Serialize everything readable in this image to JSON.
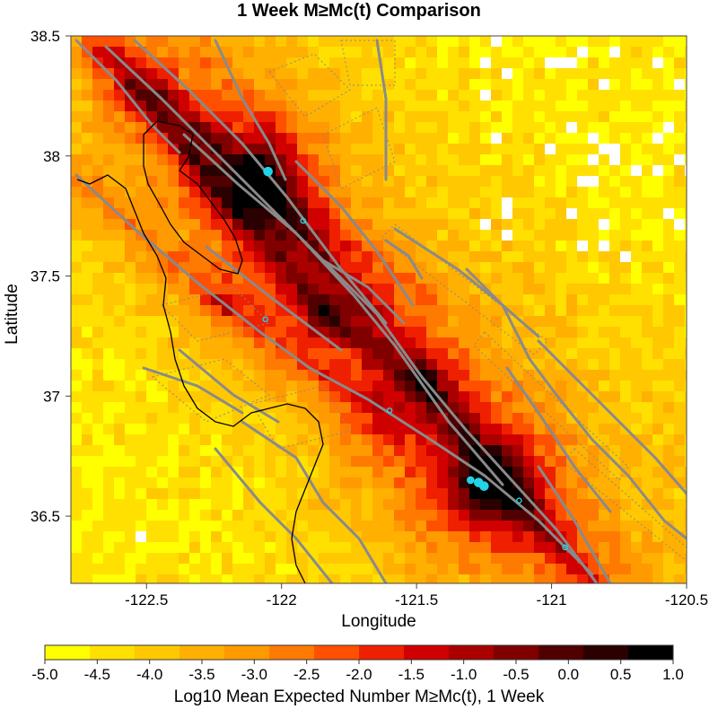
{
  "title": "1 Week M≥Mc(t) Comparison",
  "map": {
    "xlabel": "Longitude",
    "ylabel": "Latitude",
    "lon_range": [
      -122.78,
      -120.5
    ],
    "lat_range": [
      36.22,
      38.5
    ],
    "lon_ticks": [
      {
        "value": -122.5,
        "label": "-122.5"
      },
      {
        "value": -122.0,
        "label": "-122"
      },
      {
        "value": -121.5,
        "label": "-121.5"
      },
      {
        "value": -121.0,
        "label": "-121"
      },
      {
        "value": -120.5,
        "label": "-120.5"
      }
    ],
    "lat_ticks": [
      {
        "value": 38.5,
        "label": "38.5"
      },
      {
        "value": 38.0,
        "label": "38"
      },
      {
        "value": 37.5,
        "label": "37.5"
      },
      {
        "value": 37.0,
        "label": "37"
      },
      {
        "value": 36.5,
        "label": "36.5"
      }
    ],
    "colors": {
      "fault_line": "#8a8a8a",
      "coastline": "#000000",
      "event_marker": "#22d3e8"
    },
    "events": [
      {
        "lon": -122.05,
        "lat": 37.935,
        "size": "large"
      },
      {
        "lon": -121.92,
        "lat": 37.73,
        "size": "small"
      },
      {
        "lon": -122.06,
        "lat": 37.32,
        "size": "small"
      },
      {
        "lon": -121.6,
        "lat": 36.94,
        "size": "small"
      },
      {
        "lon": -121.3,
        "lat": 36.65,
        "size": "medium"
      },
      {
        "lon": -121.27,
        "lat": 36.64,
        "size": "large"
      },
      {
        "lon": -121.25,
        "lat": 36.625,
        "size": "large"
      },
      {
        "lon": -121.12,
        "lat": 36.565,
        "size": "small"
      },
      {
        "lon": -120.95,
        "lat": 36.37,
        "size": "small"
      }
    ]
  },
  "colorbar": {
    "label": "Log10 Mean Expected Number M≥Mc(t), 1 Week",
    "min": -5.0,
    "max": 1.0,
    "ticks": [
      "-5.0",
      "-4.5",
      "-4.0",
      "-3.5",
      "-3.0",
      "-2.5",
      "-2.0",
      "-1.5",
      "-1.0",
      "-0.5",
      "0.0",
      "0.5",
      "1.0"
    ],
    "colors": [
      "#ffff00",
      "#ffe000",
      "#ffc800",
      "#ffb000",
      "#ff9a00",
      "#ff7a00",
      "#ff5000",
      "#ee2000",
      "#d00000",
      "#aa0000",
      "#800000",
      "#500000",
      "#2a0000",
      "#000000"
    ]
  }
}
